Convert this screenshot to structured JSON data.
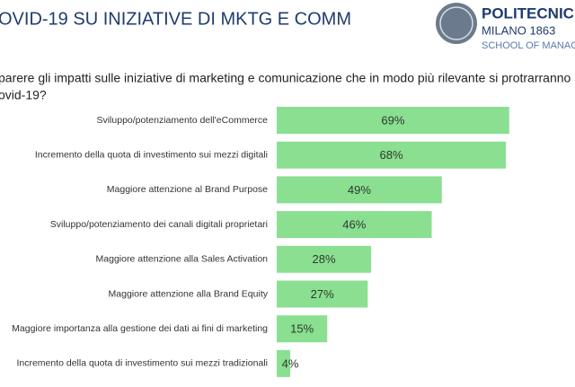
{
  "header": {
    "title": "OVID-19 SU INIZIATIVE DI MKTG E COMM",
    "logo": {
      "line1": "POLITECNIC",
      "line2": "MILANO 1863",
      "line3": "SCHOOL OF MANAGEME"
    }
  },
  "question": [
    "parere gli impatti sulle iniziative di marketing e comunicazione che in modo più rilevante si protrarranno al",
    "ovid-19?"
  ],
  "chart_data": {
    "type": "bar",
    "orientation": "horizontal",
    "color": "#8adf90",
    "categories": [
      "Sviluppo/potenziamento dell'eCommerce",
      "Incremento della quota di investimento sui mezzi digitali",
      "Maggiore attenzione al Brand Purpose",
      "Sviluppo/potenziamento dei canali digitali proprietari",
      "Maggiore attenzione alla Sales Activation",
      "Maggiore attenzione alla Brand Equity",
      "Maggiore importanza alla gestione dei dati ai fini di marketing",
      "Incremento della quota di investimento sui mezzi tradizionali"
    ],
    "values": [
      69,
      68,
      49,
      46,
      28,
      27,
      15,
      4
    ],
    "value_labels": [
      "69%",
      "68%",
      "49%",
      "46%",
      "28%",
      "27%",
      "15%",
      "4%"
    ]
  }
}
